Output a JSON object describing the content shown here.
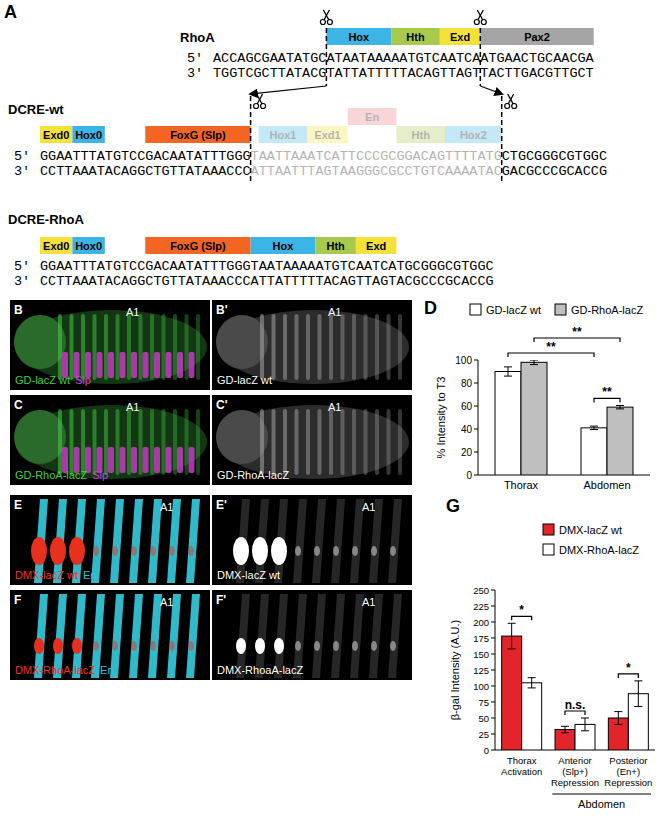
{
  "diagram": {
    "panel": "A",
    "rows": [
      {
        "name": "RhoA",
        "prime5": "5'",
        "prime3": "3'",
        "boxes": [
          {
            "text": "Hox",
            "color": "#3cb4e5"
          },
          {
            "text": "Hth",
            "color": "#a8c94b"
          },
          {
            "text": "Exd",
            "color": "#f4e23a"
          },
          {
            "text": "Pax2",
            "color": "#a5a5a5"
          }
        ],
        "strand5": [
          {
            "seq": "ACCAGCGAATATGC"
          },
          {
            "seq": "ATAATAAAAATGTCAATCA"
          },
          {
            "seq": "ATGAACTGCAACGA"
          }
        ],
        "strand3": [
          {
            "seq": "TGGTCGCTTATACG"
          },
          {
            "seq": "TATTATTTTTACAGTTAGT"
          },
          {
            "seq": "TACTTGACGTTGCT"
          }
        ]
      },
      {
        "name": "DCRE-wt",
        "prime5": "5'",
        "prime3": "3'",
        "boxes": [
          {
            "text": "Exd0",
            "color": "#f4e23a"
          },
          {
            "text": "Hox0",
            "color": "#3cb4e5"
          },
          {
            "text": "FoxG (Slp)",
            "color": "#f26522"
          },
          {
            "text": "Hox1",
            "color": "#3cb4e5",
            "faded": true
          },
          {
            "text": "Exd1",
            "color": "#f4e23a",
            "faded": true
          },
          {
            "text": "En",
            "color": "#ee7b7b",
            "faded": true
          },
          {
            "text": "Hth",
            "color": "#a8c94b",
            "faded": true
          },
          {
            "text": "Hox2",
            "color": "#3cb4e5",
            "faded": true
          }
        ],
        "strand5": [
          {
            "seq": "GGAATTTATGTCCGACAATATTTGGG"
          },
          {
            "seq": "TAATTAAATCATTCCCGCGGACAGTTTTATG",
            "faded": true
          },
          {
            "seq": "CTGCGGGCGTGGC"
          }
        ],
        "strand3": [
          {
            "seq": "CCTTAAATACAGGCTGTTATAAACCC"
          },
          {
            "seq": "ATTAATTTAGTAAGGGCGCCTGTCAAAATAC",
            "faded": true
          },
          {
            "seq": "GACGCCCGCACCG"
          }
        ]
      },
      {
        "name": "DCRE-RhoA",
        "prime5": "5'",
        "prime3": "3'",
        "boxes": [
          {
            "text": "Exd0",
            "color": "#f4e23a"
          },
          {
            "text": "Hox0",
            "color": "#3cb4e5"
          },
          {
            "text": "FoxG (Slp)",
            "color": "#f26522"
          },
          {
            "text": "Hox",
            "color": "#3cb4e5"
          },
          {
            "text": "Hth",
            "color": "#a8c94b"
          },
          {
            "text": "Exd",
            "color": "#f4e23a"
          }
        ],
        "strand5": [
          {
            "seq": "GGAATTTATGTCCGACAATATTTGGG"
          },
          {
            "seq": "TAATAAAAATGTCAATCA"
          },
          {
            "seq": "TGCGGGCGTGGC"
          }
        ],
        "strand3": [
          {
            "seq": "CCTTAAATACAGGCTGTTATAAACCC"
          },
          {
            "seq": "ATTATTTTTACAGTTAGT"
          },
          {
            "seq": "ACGCCCGCACCG"
          }
        ]
      }
    ]
  },
  "images": [
    {
      "panel": "B",
      "mode": "slp-merge",
      "landmark": "A1",
      "labels": [
        {
          "text": "GD-lacZ wt",
          "color": "#3fd43f"
        },
        {
          "text": "Slp",
          "color": "#d23fd2"
        }
      ]
    },
    {
      "panel": "B'",
      "mode": "lacz",
      "landmark": "A1",
      "labels": [
        {
          "text": "GD-lacZ wt",
          "color": "#ffffff"
        }
      ]
    },
    {
      "panel": "C",
      "mode": "slp-merge",
      "landmark": "A1",
      "labels": [
        {
          "text": "GD-RhoA-lacZ",
          "color": "#3fd43f"
        },
        {
          "text": "Slp",
          "color": "#d23fd2"
        }
      ]
    },
    {
      "panel": "C'",
      "mode": "lacz",
      "landmark": "A1",
      "labels": [
        {
          "text": "GD-RhoA-lacZ",
          "color": "#ffffff"
        }
      ]
    },
    {
      "panel": "E",
      "mode": "en-merge",
      "landmark": "A1",
      "labels": [
        {
          "text": "DMX-lacZ wt",
          "color": "#f0301e"
        },
        {
          "text": "En",
          "color": "#35c6d6"
        }
      ]
    },
    {
      "panel": "E'",
      "mode": "dmx",
      "landmark": "A1",
      "labels": [
        {
          "text": "DMX-lacZ wt",
          "color": "#ffffff"
        }
      ]
    },
    {
      "panel": "F",
      "mode": "en-merge",
      "landmark": "A1",
      "labels": [
        {
          "text": "DMX-RhoA-lacZ",
          "color": "#f0301e"
        },
        {
          "text": "En",
          "color": "#35c6d6"
        }
      ]
    },
    {
      "panel": "F'",
      "mode": "dmx",
      "landmark": "A1",
      "labels": [
        {
          "text": "DMX-RhoaA-lacZ",
          "color": "#ffffff"
        }
      ]
    }
  ],
  "chart_data": [
    {
      "type": "bar",
      "panel_label": "D",
      "y_label": "% Intensity to T3",
      "categories": [
        "Thorax",
        "Abdomen"
      ],
      "series": [
        {
          "name": "GD-lacZ wt",
          "color": "#ffffff",
          "values": [
            90,
            41
          ],
          "errors": [
            4,
            1.5
          ]
        },
        {
          "name": "GD-RhoA-lacZ",
          "color": "#bfbfbf",
          "values": [
            98,
            59
          ],
          "errors": [
            2,
            1.5
          ]
        }
      ],
      "ylim": [
        0,
        100
      ],
      "yticks": [
        0,
        20,
        40,
        60,
        80,
        100
      ],
      "legend": "top",
      "annotations": [
        {
          "text": "**",
          "from": [
            0,
            0
          ],
          "to": [
            0,
            1
          ]
        },
        {
          "text": "**",
          "from": [
            1,
            0
          ],
          "to": [
            1,
            1
          ]
        },
        {
          "text": "**",
          "from": [
            0,
            1
          ],
          "to": [
            1,
            1
          ]
        }
      ]
    },
    {
      "type": "bar",
      "panel_label": "G",
      "y_label": "β-gal Intensity (A.U.)",
      "categories": [
        "Thorax\nActivation",
        "Anterior\n(Slp+)\nRepression",
        "Posterior\n(En+)\nRepression"
      ],
      "series": [
        {
          "name": "DMX-lacZ wt",
          "color": "#e3242b",
          "values": [
            178,
            32,
            50
          ],
          "errors": [
            20,
            5,
            10
          ]
        },
        {
          "name": "DMX-RhoA-lacZ",
          "color": "#ffffff",
          "values": [
            105,
            40,
            88
          ],
          "errors": [
            8,
            10,
            20
          ]
        }
      ],
      "ylim": [
        0,
        250
      ],
      "yticks": [
        0,
        25,
        50,
        75,
        100,
        125,
        150,
        175,
        200,
        225,
        250
      ],
      "legend": "top-right",
      "annotations": [
        {
          "text": "*",
          "from": [
            0,
            0
          ],
          "to": [
            1,
            0
          ]
        },
        {
          "text": "n.s.",
          "from": [
            0,
            1
          ],
          "to": [
            1,
            1
          ]
        },
        {
          "text": "*",
          "from": [
            0,
            2
          ],
          "to": [
            1,
            2
          ]
        }
      ],
      "groups": [
        {
          "label": "Abdomen",
          "categories": [
            1,
            2
          ]
        }
      ]
    }
  ]
}
